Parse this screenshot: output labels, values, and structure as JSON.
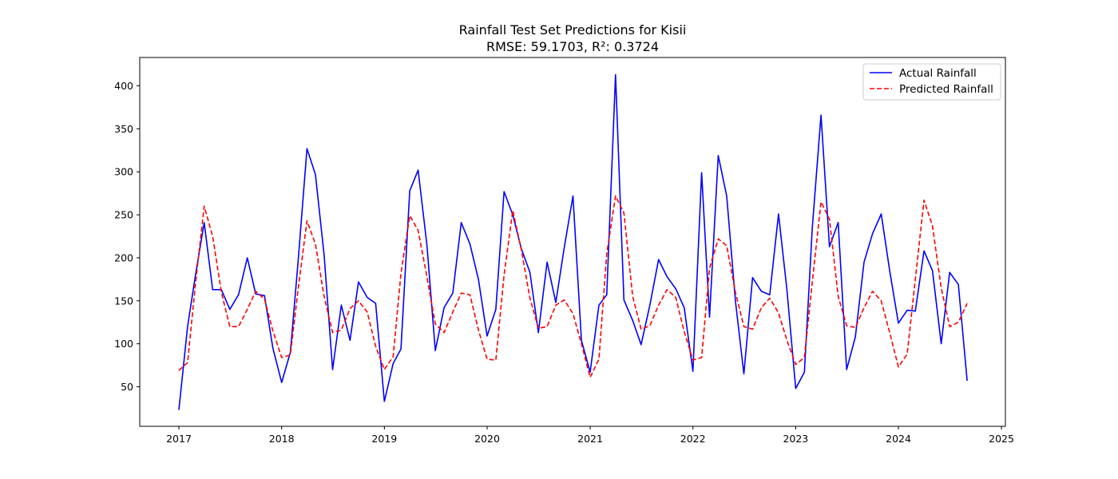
{
  "chart_data": {
    "type": "line",
    "title": "Rainfall Test Set Predictions for Kisii",
    "subtitle": "RMSE: 59.1703, R²: 0.3724",
    "xlabel": "",
    "ylabel": "",
    "x_axis_kind": "date",
    "xlim": [
      "2016-08-15",
      "2025-01-15"
    ],
    "ylim": [
      4,
      433
    ],
    "x_ticks": [
      "2017",
      "2018",
      "2019",
      "2020",
      "2021",
      "2022",
      "2023",
      "2024",
      "2025"
    ],
    "y_ticks": [
      50,
      100,
      150,
      200,
      250,
      300,
      350,
      400
    ],
    "grid": false,
    "legend": "top-right",
    "x": [
      "2017-01",
      "2017-02",
      "2017-03",
      "2017-04",
      "2017-05",
      "2017-06",
      "2017-07",
      "2017-08",
      "2017-09",
      "2017-10",
      "2017-11",
      "2017-12",
      "2018-01",
      "2018-02",
      "2018-03",
      "2018-04",
      "2018-05",
      "2018-06",
      "2018-07",
      "2018-08",
      "2018-09",
      "2018-10",
      "2018-11",
      "2018-12",
      "2019-01",
      "2019-02",
      "2019-03",
      "2019-04",
      "2019-05",
      "2019-06",
      "2019-07",
      "2019-08",
      "2019-09",
      "2019-10",
      "2019-11",
      "2019-12",
      "2020-01",
      "2020-02",
      "2020-03",
      "2020-04",
      "2020-05",
      "2020-06",
      "2020-07",
      "2020-08",
      "2020-09",
      "2020-10",
      "2020-11",
      "2020-12",
      "2021-01",
      "2021-02",
      "2021-03",
      "2021-04",
      "2021-05",
      "2021-06",
      "2021-07",
      "2021-08",
      "2021-09",
      "2021-10",
      "2021-11",
      "2021-12",
      "2022-01",
      "2022-02",
      "2022-03",
      "2022-04",
      "2022-05",
      "2022-06",
      "2022-07",
      "2022-08",
      "2022-09",
      "2022-10",
      "2022-11",
      "2022-12",
      "2023-01",
      "2023-02",
      "2023-03",
      "2023-04",
      "2023-05",
      "2023-06",
      "2023-07",
      "2023-08",
      "2023-09",
      "2023-10",
      "2023-11",
      "2023-12",
      "2024-01",
      "2024-02",
      "2024-03",
      "2024-04",
      "2024-05",
      "2024-06",
      "2024-07",
      "2024-08",
      "2024-09"
    ],
    "series": [
      {
        "name": "Actual Rainfall",
        "color": "#0000ff",
        "style": "solid",
        "values": [
          23,
          120,
          180,
          241,
          163,
          163,
          140,
          157,
          200,
          158,
          156,
          95,
          55,
          90,
          198,
          327,
          297,
          203,
          70,
          145,
          104,
          172,
          154,
          147,
          33,
          77,
          94,
          278,
          302,
          215,
          92,
          142,
          159,
          241,
          216,
          175,
          109,
          140,
          277,
          250,
          211,
          183,
          113,
          195,
          148,
          212,
          272,
          104,
          67,
          145,
          157,
          413,
          151,
          127,
          99,
          145,
          198,
          178,
          164,
          142,
          68,
          299,
          131,
          319,
          272,
          150,
          65,
          177,
          161,
          157,
          251,
          163,
          48,
          67,
          235,
          366,
          213,
          241,
          70,
          108,
          195,
          228,
          251,
          185,
          124,
          139,
          138,
          208,
          185,
          100,
          183,
          169,
          57
        ]
      },
      {
        "name": "Predicted Rainfall",
        "color": "#ff0000",
        "style": "dashed",
        "values": [
          69,
          78,
          170,
          260,
          225,
          160,
          120,
          120,
          140,
          161,
          152,
          115,
          84,
          87,
          165,
          243,
          216,
          155,
          113,
          116,
          141,
          150,
          137,
          97,
          70,
          85,
          182,
          249,
          232,
          178,
          123,
          113,
          137,
          159,
          157,
          116,
          82,
          81,
          180,
          255,
          210,
          153,
          118,
          120,
          145,
          151,
          135,
          100,
          61,
          82,
          205,
          272,
          252,
          155,
          117,
          121,
          145,
          163,
          154,
          114,
          81,
          84,
          188,
          222,
          214,
          160,
          120,
          117,
          142,
          153,
          136,
          104,
          76,
          84,
          172,
          265,
          245,
          155,
          121,
          119,
          142,
          161,
          150,
          113,
          73,
          88,
          175,
          267,
          237,
          165,
          120,
          125,
          147
        ]
      }
    ]
  }
}
